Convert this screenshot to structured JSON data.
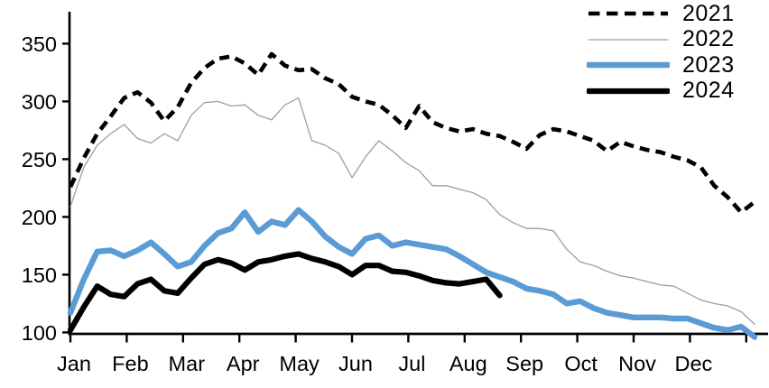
{
  "chart_data": {
    "type": "line",
    "title": "",
    "x_axis": {
      "unit": "weekly",
      "tick_labels": [
        "Jan",
        "Feb",
        "Mar",
        "Apr",
        "May",
        "Jun",
        "Jul",
        "Aug",
        "Sep",
        "Oct",
        "Nov",
        "Dec"
      ]
    },
    "y_axis": {
      "ticks": [
        100,
        150,
        200,
        250,
        300,
        350
      ],
      "tick_labels": [
        "100",
        "150",
        "200",
        "250",
        "300",
        "350"
      ],
      "min": 100,
      "max": 375,
      "grid": false
    },
    "legend_position": "top-right",
    "series": [
      {
        "name": "2021",
        "color": "#000000",
        "style": "dashed",
        "width": 4.6,
        "values": [
          226,
          251,
          272,
          287,
          303,
          308,
          299,
          283,
          295,
          316,
          329,
          337,
          339,
          333,
          323,
          341,
          331,
          327,
          328,
          320,
          315,
          304,
          300,
          297,
          288,
          277,
          296,
          282,
          277,
          274,
          276,
          272,
          270,
          265,
          259,
          271,
          276,
          274,
          270,
          266,
          257,
          265,
          261,
          258,
          256,
          252,
          249,
          243,
          227,
          217,
          204,
          213
        ]
      },
      {
        "name": "2022",
        "color": "#9e9e9e",
        "style": "solid",
        "width": 1.3,
        "values": [
          209,
          243,
          262,
          272,
          280,
          268,
          264,
          272,
          266,
          288,
          299,
          300,
          296,
          297,
          288,
          284,
          297,
          303,
          266,
          262,
          255,
          234,
          252,
          266,
          257,
          247,
          240,
          227,
          227,
          224,
          221,
          215,
          202,
          195,
          190,
          190,
          188,
          172,
          161,
          158,
          153,
          149,
          147,
          144,
          141,
          140,
          134,
          128,
          125,
          123,
          118,
          107
        ]
      },
      {
        "name": "2023",
        "color": "#5b9bd5",
        "style": "solid",
        "width": 6.4,
        "values": [
          117,
          146,
          170,
          171,
          166,
          171,
          178,
          168,
          157,
          161,
          175,
          186,
          190,
          204,
          187,
          196,
          193,
          206,
          196,
          183,
          174,
          168,
          181,
          184,
          175,
          178,
          176,
          174,
          172,
          166,
          159,
          152,
          148,
          144,
          138,
          136,
          133,
          125,
          127,
          121,
          117,
          115,
          113,
          113,
          113,
          112,
          112,
          108,
          104,
          102,
          105,
          96
        ]
      },
      {
        "name": "2024",
        "color": "#000000",
        "style": "solid",
        "width": 6.2,
        "values": [
          102,
          122,
          140,
          133,
          131,
          142,
          146,
          136,
          134,
          147,
          159,
          163,
          160,
          154,
          161,
          163,
          166,
          168,
          164,
          161,
          157,
          150,
          158,
          158,
          153,
          152,
          149,
          145,
          143,
          142,
          144,
          146,
          132
        ]
      }
    ]
  }
}
